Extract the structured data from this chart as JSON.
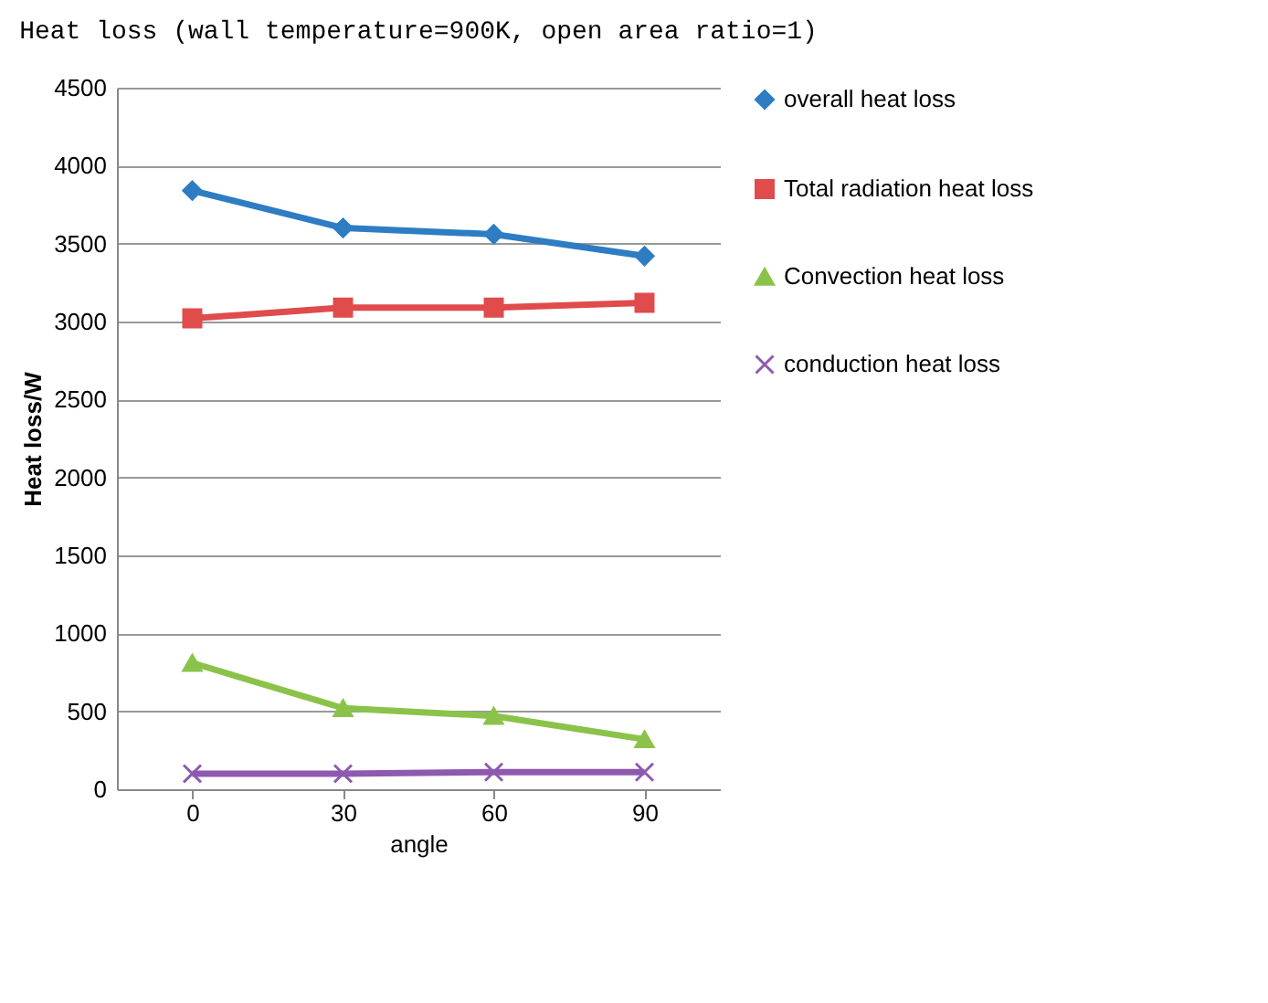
{
  "chart_data": {
    "type": "line",
    "title": "Heat loss (wall temperature=900K, open area ratio=1)",
    "xlabel": "angle",
    "ylabel": "Heat loss/W",
    "categories": [
      "0",
      "30",
      "60",
      "90"
    ],
    "series": [
      {
        "name": "overall heat loss",
        "color": "#2e7dc3",
        "marker": "diamond",
        "values": [
          3840,
          3600,
          3560,
          3420
        ]
      },
      {
        "name": "Total radiation heat loss",
        "color": "#e04b4b",
        "marker": "square",
        "values": [
          3020,
          3090,
          3090,
          3120
        ]
      },
      {
        "name": "Convection heat loss",
        "color": "#8bc34a",
        "marker": "triangle",
        "values": [
          810,
          520,
          470,
          320
        ]
      },
      {
        "name": "conduction heat loss",
        "color": "#8e5ab0",
        "marker": "cross",
        "values": [
          100,
          100,
          110,
          110
        ]
      }
    ],
    "ylim": [
      0,
      4500
    ],
    "yticks": [
      0,
      500,
      1000,
      1500,
      2000,
      2500,
      3000,
      3500,
      4000,
      4500
    ],
    "grid": "y",
    "legend": "right"
  }
}
